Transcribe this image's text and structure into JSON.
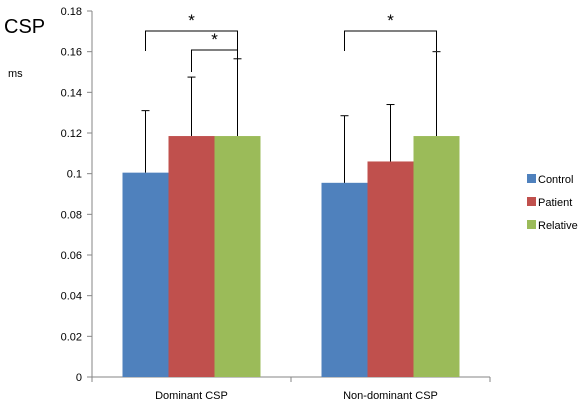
{
  "chart_data": {
    "type": "bar",
    "title": "CSP",
    "ylabel": "ms",
    "categories": [
      "Dominant CSP",
      "Non-dominant CSP"
    ],
    "ylim": [
      0,
      0.18
    ],
    "yticks": [
      "0",
      "0.02",
      "0.04",
      "0.06",
      "0.08",
      "0.1",
      "0.12",
      "0.14",
      "0.16",
      "0.18"
    ],
    "series": [
      {
        "name": "Control",
        "color": "#4F81BD",
        "values": [
          0.1005,
          0.0955
        ],
        "errors": [
          0.0305,
          0.033
        ]
      },
      {
        "name": "Patient",
        "color": "#C0504D",
        "values": [
          0.1185,
          0.106
        ],
        "errors": [
          0.029,
          0.028
        ]
      },
      {
        "name": "Relative",
        "color": "#9BBB59",
        "values": [
          0.1185,
          0.1185
        ],
        "errors": [
          0.038,
          0.0415
        ]
      }
    ],
    "significance": [
      {
        "group": 0,
        "from": 0,
        "to": 2,
        "label": "*"
      },
      {
        "group": 0,
        "from": 1,
        "to": 2,
        "label": "*"
      },
      {
        "group": 1,
        "from": 0,
        "to": 2,
        "label": "*"
      }
    ],
    "legend_position": "right",
    "grid": false
  }
}
